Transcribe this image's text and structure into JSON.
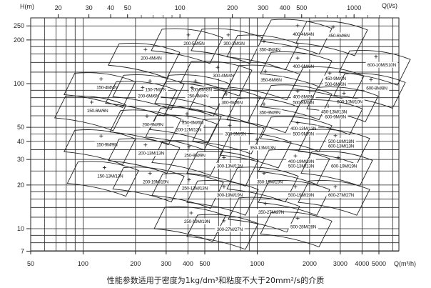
{
  "chart_data": {
    "type": "scatter",
    "title": "",
    "xlabel": "Q(m³/h)",
    "x2label": "Q(l/s)",
    "ylabel": "H(m)",
    "x_scale": "log",
    "y_scale": "log",
    "xlim": [
      50,
      6000
    ],
    "ylim": [
      7,
      250
    ],
    "grid": true,
    "x_ticks": [
      50,
      100,
      200,
      300,
      400,
      500,
      1000,
      2000,
      3000,
      4000,
      5000
    ],
    "x2_ticks": [
      20,
      30,
      40,
      50,
      100,
      200,
      300,
      400,
      500,
      1000
    ],
    "y_ticks": [
      250,
      200,
      100,
      50,
      40,
      30,
      20,
      10,
      7
    ],
    "line_color": "#222222",
    "models": [
      {
        "label": "400-4M/4N",
        "q": 1840,
        "h": 219
      },
      {
        "label": "450-6M/6N",
        "q": 2947,
        "h": 214
      },
      {
        "label": "200-5M/5N",
        "q": 434,
        "h": 189
      },
      {
        "label": "300-3M/3N",
        "q": 736,
        "h": 189
      },
      {
        "label": "350-4M/4N",
        "q": 1180,
        "h": 171
      },
      {
        "label": "200-4M/4N",
        "q": 246,
        "h": 150
      },
      {
        "label": "400-6M/6N",
        "q": 1840,
        "h": 131
      },
      {
        "label": "600-10M/S10N",
        "q": 5190,
        "h": 134
      },
      {
        "label": "300-4M/4N",
        "q": 639,
        "h": 113
      },
      {
        "label": "150-4M/4N",
        "q": 137,
        "h": 94
      },
      {
        "label": "150-7M/7N",
        "q": 261,
        "h": 91
      },
      {
        "label": "200-8M/8N",
        "q": 477,
        "h": 91
      },
      {
        "label": "350-6M/6N",
        "q": 1202,
        "h": 106
      },
      {
        "label": "450-9M/9N",
        "q": 2812,
        "h": 108
      },
      {
        "label": "500-6M/6N",
        "q": 2812,
        "h": 99,
        "shared": true
      },
      {
        "label": "200-6M/6N",
        "q": 237,
        "h": 82
      },
      {
        "label": "250-4M/4N",
        "q": 455,
        "h": 82
      },
      {
        "label": "600-8M/8N",
        "q": 4860,
        "h": 93
      },
      {
        "label": "300-6M/6N",
        "q": 716,
        "h": 74
      },
      {
        "label": "400-8M/8N",
        "q": 1840,
        "h": 81
      },
      {
        "label": "500-8M/8N",
        "q": 1840,
        "h": 74,
        "shared": true
      },
      {
        "label": "600-10M/10N",
        "q": 3397,
        "h": 75
      },
      {
        "label": "150-6M/6N",
        "q": 121,
        "h": 65
      },
      {
        "label": "350-9M/9N",
        "q": 1180,
        "h": 63
      },
      {
        "label": "450-13M/13N",
        "q": 2760,
        "h": 64
      },
      {
        "label": "600-9M/9N",
        "q": 2812,
        "h": 59,
        "shared": true
      },
      {
        "label": "250-6M/6N",
        "q": 426,
        "h": 54
      },
      {
        "label": "200-12M/12N",
        "q": 403,
        "h": 48
      },
      {
        "label": "200-9M/9N",
        "q": 251,
        "h": 52
      },
      {
        "label": "300-9M/9N",
        "q": 750,
        "h": 45
      },
      {
        "label": "400-13M/13N",
        "q": 1840,
        "h": 49
      },
      {
        "label": "500-9M/9N",
        "q": 1840,
        "h": 45,
        "shared": true
      },
      {
        "label": "500-18M/18N",
        "q": 3032,
        "h": 40
      },
      {
        "label": "600-13M/13N",
        "q": 3032,
        "h": 37,
        "shared": true
      },
      {
        "label": "150-9M/9N",
        "q": 137,
        "h": 38
      },
      {
        "label": "250-9M/9N",
        "q": 438,
        "h": 32
      },
      {
        "label": "200-13M/13N",
        "q": 246,
        "h": 33
      },
      {
        "label": "350-13M/13N",
        "q": 1074,
        "h": 36
      },
      {
        "label": "300-13M/13N",
        "q": 695,
        "h": 27
      },
      {
        "label": "400-19M/19N",
        "q": 1787,
        "h": 29
      },
      {
        "label": "500-13M/13N",
        "q": 1787,
        "h": 27,
        "shared": true
      },
      {
        "label": "600-19M/19N",
        "q": 3149,
        "h": 27
      },
      {
        "label": "150-13M/13N",
        "q": 143,
        "h": 23
      },
      {
        "label": "200-19M/19N",
        "q": 261,
        "h": 21
      },
      {
        "label": "350-19M/19N",
        "q": 1180,
        "h": 21
      },
      {
        "label": "250-13M/13N",
        "q": 438,
        "h": 19
      },
      {
        "label": "300-19M/19N",
        "q": 695,
        "h": 17
      },
      {
        "label": "500-19M/19N",
        "q": 1787,
        "h": 17
      },
      {
        "label": "600-27M/27N",
        "q": 3032,
        "h": 17
      },
      {
        "label": "350-27M/27N",
        "q": 1202,
        "h": 13
      },
      {
        "label": "250-19M/19N",
        "q": 451,
        "h": 11.2
      },
      {
        "label": "300-27M/27N",
        "q": 695,
        "h": 9.9
      },
      {
        "label": "500-28M/28N",
        "q": 1840,
        "h": 10.3
      }
    ]
  },
  "caption": "性能参数适用于密度为1kg/dm³和粘度不大于20mm²/s的介质"
}
